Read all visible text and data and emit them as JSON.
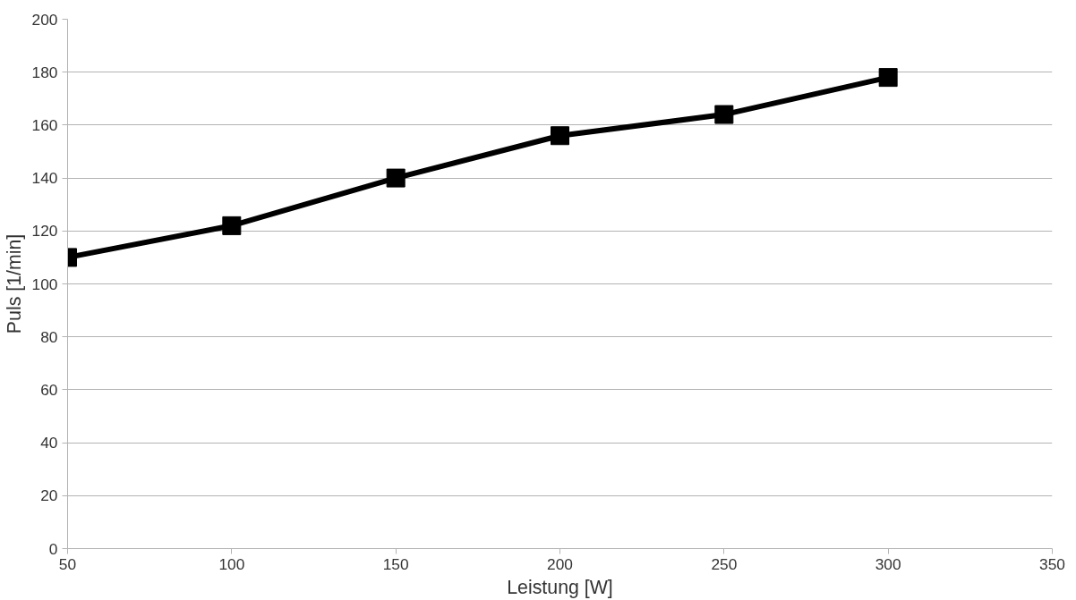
{
  "chart_data": {
    "type": "line",
    "xlabel": "Leistung [W]",
    "ylabel": "Puls [1/min]",
    "x": [
      50,
      100,
      150,
      200,
      250,
      300
    ],
    "series": [
      {
        "color": "#000000",
        "values": [
          110,
          122,
          140,
          156,
          164,
          178
        ]
      }
    ],
    "xlim": [
      50,
      350
    ],
    "xticks": [
      50,
      100,
      150,
      200,
      250,
      300,
      350
    ],
    "ylim": [
      0,
      200
    ],
    "yticks": [
      0,
      20,
      40,
      60,
      80,
      100,
      120,
      140,
      160,
      180,
      200
    ],
    "grid": "y",
    "marker": "square",
    "line_style": "solid"
  }
}
